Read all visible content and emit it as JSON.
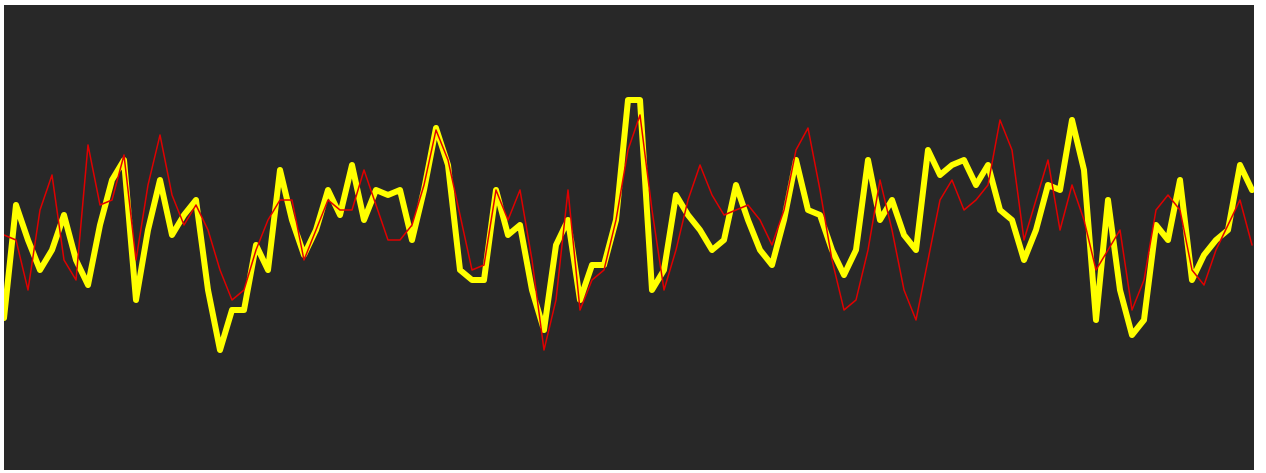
{
  "chart_data": {
    "type": "line",
    "x": [
      0,
      1,
      2,
      3,
      4,
      5,
      6,
      7,
      8,
      9,
      10,
      11,
      12,
      13,
      14,
      15,
      16,
      17,
      18,
      19,
      20,
      21,
      22,
      23,
      24,
      25,
      26,
      27,
      28,
      29,
      30,
      31,
      32,
      33,
      34,
      35,
      36,
      37,
      38,
      39,
      40,
      41,
      42,
      43,
      44,
      45,
      46,
      47,
      48,
      49,
      50,
      51,
      52,
      53,
      54,
      55,
      56,
      57,
      58,
      59,
      60,
      61,
      62,
      63,
      64,
      65,
      66,
      67,
      68,
      69,
      70,
      71,
      72,
      73,
      74,
      75,
      76,
      77,
      78,
      79,
      80,
      81,
      82,
      83,
      84,
      85,
      86,
      87,
      88,
      89,
      90,
      91,
      92,
      93,
      94,
      95,
      96,
      97,
      98,
      99,
      100,
      101,
      102,
      103,
      104
    ],
    "xlim": [
      0,
      104
    ],
    "ylim": [
      0,
      465
    ],
    "background": "#282828",
    "series": [
      {
        "color": "#ffff00",
        "width": 6,
        "values": [
          152,
          265,
          230,
          200,
          220,
          255,
          210,
          185,
          245,
          290,
          310,
          170,
          240,
          290,
          235,
          255,
          270,
          180,
          120,
          160,
          160,
          225,
          200,
          300,
          250,
          215,
          240,
          280,
          255,
          305,
          250,
          280,
          275,
          280,
          230,
          280,
          342,
          305,
          200,
          190,
          190,
          280,
          235,
          245,
          180,
          140,
          225,
          250,
          170,
          205,
          205,
          250,
          370,
          370,
          180,
          200,
          275,
          255,
          240,
          220,
          230,
          285,
          250,
          220,
          205,
          250,
          310,
          260,
          255,
          220,
          195,
          220,
          310,
          250,
          270,
          235,
          220,
          320,
          295,
          305,
          310,
          285,
          305,
          260,
          250,
          210,
          240,
          285,
          280,
          350,
          300,
          150,
          270,
          180,
          135,
          150,
          245,
          230,
          290,
          190,
          215,
          230,
          240,
          305,
          280
        ]
      },
      {
        "color": "#e00000",
        "width": 1.5,
        "values": [
          235,
          230,
          180,
          260,
          295,
          210,
          190,
          325,
          265,
          270,
          315,
          210,
          285,
          335,
          275,
          245,
          265,
          240,
          200,
          170,
          180,
          220,
          250,
          270,
          270,
          210,
          240,
          270,
          260,
          260,
          300,
          265,
          230,
          230,
          245,
          285,
          340,
          310,
          255,
          200,
          205,
          280,
          250,
          280,
          210,
          120,
          170,
          280,
          160,
          190,
          200,
          250,
          320,
          355,
          260,
          180,
          220,
          270,
          305,
          275,
          255,
          260,
          265,
          250,
          225,
          260,
          320,
          342,
          280,
          210,
          160,
          170,
          220,
          290,
          240,
          180,
          150,
          210,
          270,
          290,
          260,
          270,
          285,
          350,
          320,
          230,
          270,
          310,
          240,
          285,
          250,
          200,
          220,
          240,
          160,
          190,
          260,
          275,
          260,
          200,
          185,
          220,
          245,
          270,
          225
        ]
      }
    ]
  }
}
